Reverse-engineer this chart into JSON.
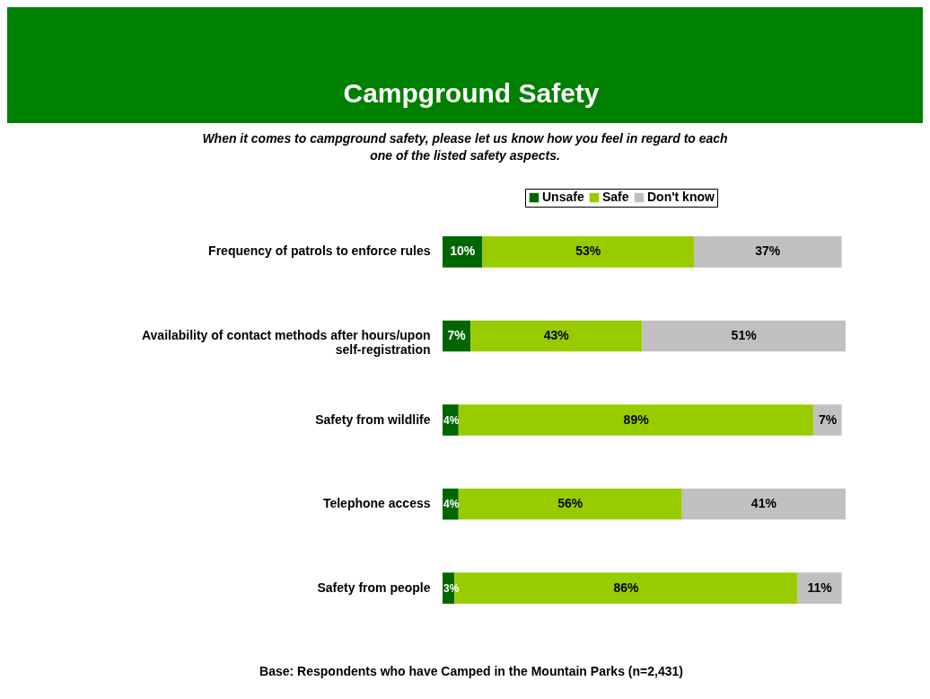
{
  "chart_data": {
    "type": "bar",
    "title": "Campground Safety",
    "subtitle": "When it comes to campground safety, please let us know how you feel in regard to each one of the listed safety aspects.",
    "categories": [
      "Frequency of patrols to enforce rules",
      "Availability of contact methods after hours/upon self-registration",
      "Safety from wildlife",
      "Telephone access",
      "Safety from people"
    ],
    "orientation": "horizontal",
    "stacked": true,
    "legend": "top",
    "grid": false,
    "tick_labels": "y",
    "series": [
      {
        "name": "Unsafe",
        "color": "#006600",
        "values": [
          10,
          7,
          4,
          4,
          3
        ],
        "value_labels": [
          "10%",
          "7%",
          "4%",
          "4%",
          "3%"
        ]
      },
      {
        "name": "Safe",
        "color": "#99cc00",
        "values": [
          53,
          43,
          89,
          56,
          86
        ],
        "value_labels": [
          "53%",
          "43%",
          "89%",
          "56%",
          "86%"
        ]
      },
      {
        "name": "Don't know",
        "color": "#c0c0c0",
        "values": [
          37,
          51,
          7,
          41,
          11
        ],
        "value_labels": [
          "37%",
          "51%",
          "7%",
          "41%",
          "11%"
        ]
      }
    ],
    "annotations": [
      "Base: Respondents who have Camped in the Mountain Parks (n=2,431)"
    ]
  }
}
